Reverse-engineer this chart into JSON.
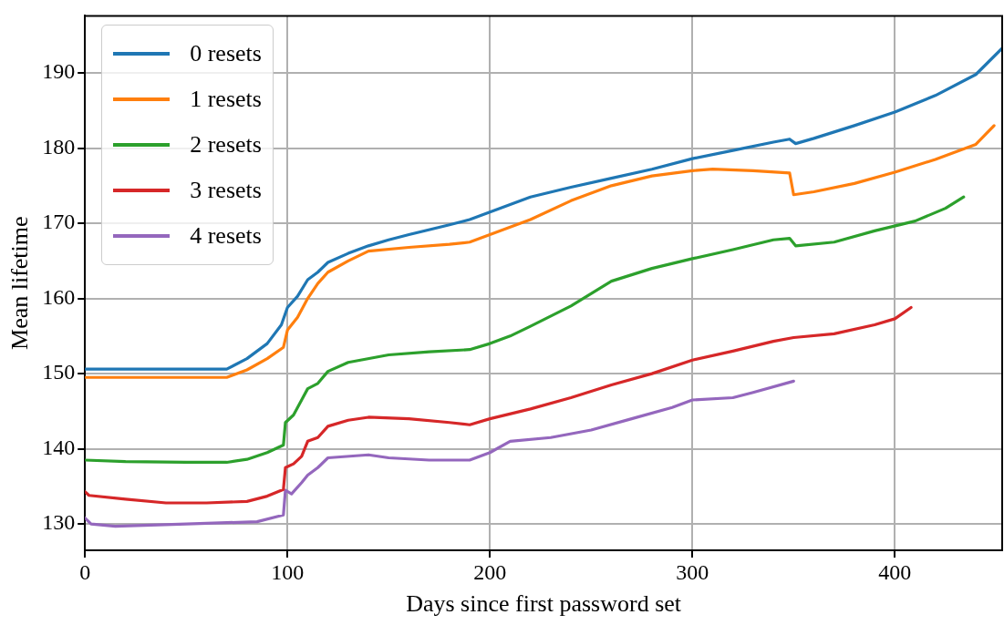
{
  "chart_data": {
    "type": "line",
    "xlabel": "Days since first password set",
    "ylabel": "Mean lifetime",
    "xlim": [
      0,
      453
    ],
    "ylim": [
      126.5,
      197.6
    ],
    "xticks": [
      0,
      100,
      200,
      300,
      400
    ],
    "yticks": [
      130,
      140,
      150,
      160,
      170,
      180,
      190
    ],
    "grid": true,
    "legend": "top left",
    "marker": "none",
    "line_style": "solid",
    "series": [
      {
        "name": "0 resets",
        "color": "#1f77b4",
        "x": [
          0,
          70,
          80,
          90,
          97,
          100,
          105,
          110,
          115,
          120,
          130,
          140,
          150,
          160,
          180,
          190,
          200,
          220,
          240,
          260,
          280,
          300,
          320,
          340,
          348,
          351,
          360,
          380,
          400,
          420,
          440,
          453
        ],
        "values": [
          150.6,
          150.6,
          152,
          154,
          156.5,
          158.8,
          160.3,
          162.5,
          163.5,
          164.8,
          166,
          167,
          167.8,
          168.5,
          169.8,
          170.5,
          171.5,
          173.5,
          174.8,
          176,
          177.2,
          178.6,
          179.7,
          180.8,
          181.2,
          180.6,
          181.3,
          183,
          184.8,
          187,
          189.8,
          193.3
        ]
      },
      {
        "name": "1 resets",
        "color": "#ff7f0e",
        "x": [
          0,
          70,
          80,
          90,
          98,
          100,
          105,
          110,
          115,
          120,
          130,
          140,
          160,
          180,
          190,
          200,
          220,
          240,
          260,
          280,
          300,
          310,
          330,
          348,
          350,
          360,
          380,
          400,
          420,
          440,
          449
        ],
        "values": [
          149.5,
          149.5,
          150.5,
          152,
          153.5,
          155.8,
          157.5,
          160,
          162,
          163.5,
          165,
          166.3,
          166.8,
          167.2,
          167.5,
          168.5,
          170.5,
          173,
          175,
          176.3,
          177,
          177.2,
          177,
          176.7,
          173.8,
          174.2,
          175.3,
          176.8,
          178.5,
          180.5,
          183
        ]
      },
      {
        "name": "2 resets",
        "color": "#2ca02c",
        "x": [
          0,
          20,
          50,
          70,
          80,
          90,
          98,
          99,
          103,
          107,
          110,
          115,
          120,
          130,
          150,
          170,
          190,
          200,
          210,
          220,
          240,
          260,
          280,
          300,
          320,
          340,
          348,
          351,
          370,
          390,
          410,
          425,
          434
        ],
        "values": [
          138.5,
          138.3,
          138.2,
          138.2,
          138.6,
          139.5,
          140.5,
          143.5,
          144.5,
          146.5,
          148,
          148.7,
          150.3,
          151.5,
          152.5,
          152.9,
          153.2,
          154,
          155,
          156.3,
          159,
          162.3,
          164,
          165.3,
          166.5,
          167.8,
          168,
          167,
          167.5,
          169,
          170.3,
          172,
          173.5
        ]
      },
      {
        "name": "3 resets",
        "color": "#d62728",
        "x": [
          0,
          2,
          20,
          40,
          60,
          80,
          90,
          98,
          99,
          103,
          107,
          110,
          115,
          120,
          130,
          140,
          160,
          180,
          190,
          200,
          220,
          240,
          260,
          280,
          300,
          320,
          340,
          350,
          370,
          390,
          400,
          408
        ],
        "values": [
          134.3,
          133.8,
          133.3,
          132.8,
          132.8,
          133,
          133.7,
          134.6,
          137.5,
          138,
          139,
          141,
          141.5,
          143,
          143.8,
          144.2,
          144,
          143.5,
          143.2,
          144,
          145.3,
          146.8,
          148.5,
          150,
          151.8,
          153,
          154.3,
          154.8,
          155.3,
          156.5,
          157.3,
          158.8
        ]
      },
      {
        "name": "4 resets",
        "color": "#9467bd",
        "x": [
          0,
          3,
          15,
          50,
          85,
          98,
          99,
          102,
          107,
          110,
          115,
          120,
          140,
          150,
          170,
          190,
          200,
          210,
          230,
          250,
          270,
          290,
          300,
          320,
          330,
          350
        ],
        "values": [
          130.8,
          130,
          129.7,
          130,
          130.3,
          131.2,
          134.5,
          134,
          135.5,
          136.5,
          137.5,
          138.8,
          139.2,
          138.8,
          138.5,
          138.5,
          139.5,
          141,
          141.5,
          142.5,
          144,
          145.5,
          146.5,
          146.8,
          147.5,
          149
        ]
      }
    ]
  }
}
